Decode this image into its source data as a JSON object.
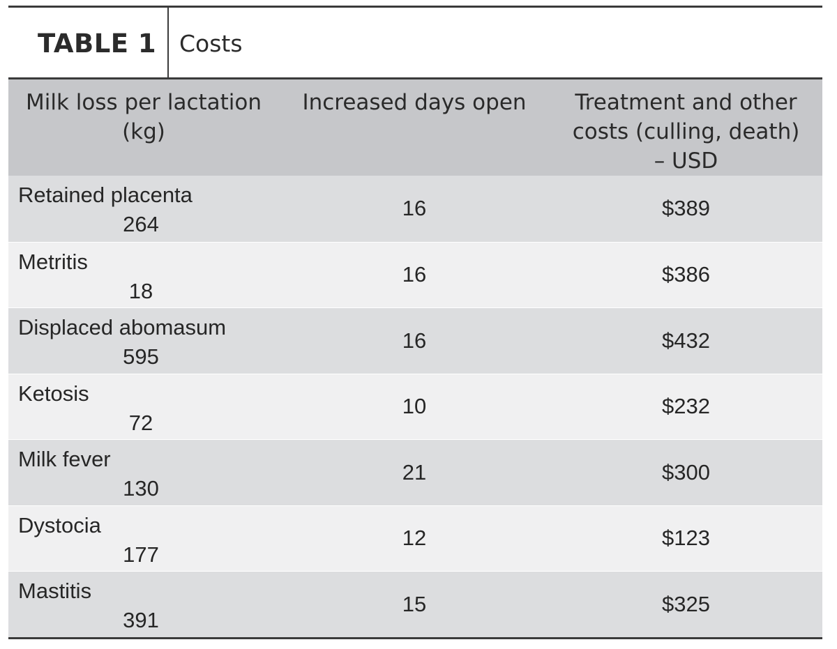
{
  "table": {
    "label": "TABLE 1",
    "caption": "Costs",
    "headers": [
      "Milk loss per lactation (kg)",
      "Increased days open",
      "Treatment and other costs (culling, death) – USD"
    ],
    "rows": [
      {
        "disease": "Retained placenta",
        "milk_loss": "264",
        "days_open": "16",
        "cost": "$389"
      },
      {
        "disease": "Metritis",
        "milk_loss": "18",
        "days_open": "16",
        "cost": "$386"
      },
      {
        "disease": "Displaced abomasum",
        "milk_loss": "595",
        "days_open": "16",
        "cost": "$432"
      },
      {
        "disease": "Ketosis",
        "milk_loss": "72",
        "days_open": "10",
        "cost": "$232"
      },
      {
        "disease": "Milk fever",
        "milk_loss": "130",
        "days_open": "21",
        "cost": "$300"
      },
      {
        "disease": "Dystocia",
        "milk_loss": "177",
        "days_open": "12",
        "cost": "$123"
      },
      {
        "disease": "Mastitis",
        "milk_loss": "391",
        "days_open": "15",
        "cost": "$325"
      }
    ]
  }
}
